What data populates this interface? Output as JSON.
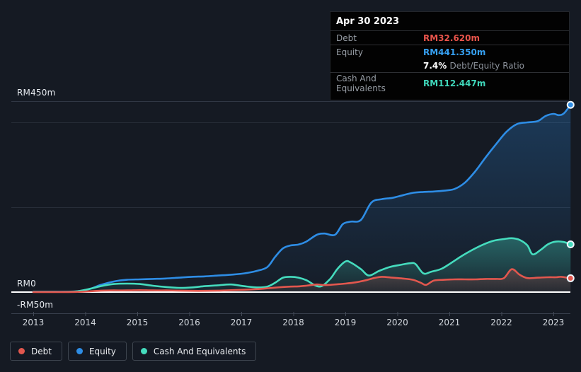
{
  "tooltip": {
    "date": "Apr 30 2023",
    "debt_label": "Debt",
    "debt_value": "RM32.620m",
    "equity_label": "Equity",
    "equity_value": "RM441.350m",
    "ratio_value": "7.4%",
    "ratio_label": "Debt/Equity Ratio",
    "cash_label": "Cash And Equivalents",
    "cash_value": "RM112.447m"
  },
  "legend": {
    "items": [
      {
        "label": "Debt",
        "color": "#e2574e"
      },
      {
        "label": "Equity",
        "color": "#2e8de5"
      },
      {
        "label": "Cash And Equivalents",
        "color": "#45dcbe"
      }
    ]
  },
  "axis": {
    "y_top_label": "RM450m",
    "y_zero_label": "RM0",
    "y_neg_label": "-RM50m",
    "x_ticks": [
      "2013",
      "2014",
      "2015",
      "2016",
      "2017",
      "2018",
      "2019",
      "2020",
      "2021",
      "2022",
      "2023"
    ]
  },
  "colors": {
    "background": "#151a23",
    "gridline": "#272d38",
    "gridline_top": "#303744",
    "zero_line": "#ffffff",
    "axis_line": "#39404d",
    "tick": "#434a57",
    "debt": "#e2574e",
    "equity": "#2e8de5",
    "cash": "#45dcbe",
    "marker_ring": "#eef5fb"
  },
  "chart_data": {
    "type": "area",
    "title": "Debt to Equity History",
    "x_unit": "year",
    "x_range": [
      2012.58,
      2023.42
    ],
    "ylim": [
      -50,
      470
    ],
    "grid_values": [
      450,
      400,
      200
    ],
    "zero_value": 0,
    "neg_axis_value": -50,
    "currency_prefix": "RM",
    "unit_suffix": "m",
    "legend_position": "bottom-left",
    "series": [
      {
        "name": "Equity",
        "color_key": "equity",
        "end_value": 441.35,
        "points": [
          [
            2013.0,
            1
          ],
          [
            2013.3,
            1
          ],
          [
            2013.6,
            1
          ],
          [
            2013.85,
            2
          ],
          [
            2014.1,
            8
          ],
          [
            2014.3,
            17
          ],
          [
            2014.55,
            25
          ],
          [
            2014.8,
            29
          ],
          [
            2015.05,
            30
          ],
          [
            2015.3,
            31
          ],
          [
            2015.55,
            32
          ],
          [
            2015.8,
            34
          ],
          [
            2016.05,
            36
          ],
          [
            2016.3,
            37
          ],
          [
            2016.55,
            39
          ],
          [
            2016.8,
            41
          ],
          [
            2017.05,
            44
          ],
          [
            2017.3,
            50
          ],
          [
            2017.5,
            59
          ],
          [
            2017.65,
            83
          ],
          [
            2017.8,
            103
          ],
          [
            2017.95,
            110
          ],
          [
            2018.1,
            112
          ],
          [
            2018.25,
            119
          ],
          [
            2018.45,
            135
          ],
          [
            2018.6,
            138
          ],
          [
            2018.8,
            135
          ],
          [
            2018.95,
            160
          ],
          [
            2019.1,
            166
          ],
          [
            2019.3,
            170
          ],
          [
            2019.5,
            211
          ],
          [
            2019.7,
            219
          ],
          [
            2019.9,
            222
          ],
          [
            2020.1,
            228
          ],
          [
            2020.3,
            234
          ],
          [
            2020.5,
            236
          ],
          [
            2020.7,
            237
          ],
          [
            2020.9,
            239
          ],
          [
            2021.1,
            243
          ],
          [
            2021.3,
            258
          ],
          [
            2021.5,
            285
          ],
          [
            2021.7,
            318
          ],
          [
            2021.9,
            349
          ],
          [
            2022.1,
            378
          ],
          [
            2022.3,
            396
          ],
          [
            2022.5,
            400
          ],
          [
            2022.7,
            403
          ],
          [
            2022.85,
            415
          ],
          [
            2023.0,
            420
          ],
          [
            2023.1,
            417
          ],
          [
            2023.2,
            421
          ],
          [
            2023.33,
            441.35
          ]
        ]
      },
      {
        "name": "Cash And Equivalents",
        "color_key": "cash",
        "end_value": 112.447,
        "points": [
          [
            2013.0,
            0.5
          ],
          [
            2013.3,
            0.5
          ],
          [
            2013.6,
            0.5
          ],
          [
            2013.85,
            2
          ],
          [
            2014.1,
            8
          ],
          [
            2014.3,
            14
          ],
          [
            2014.55,
            19
          ],
          [
            2014.8,
            20
          ],
          [
            2015.05,
            19
          ],
          [
            2015.3,
            15
          ],
          [
            2015.55,
            12
          ],
          [
            2015.8,
            10
          ],
          [
            2016.05,
            11
          ],
          [
            2016.3,
            14
          ],
          [
            2016.55,
            16
          ],
          [
            2016.8,
            18
          ],
          [
            2017.05,
            14
          ],
          [
            2017.3,
            11
          ],
          [
            2017.5,
            13
          ],
          [
            2017.65,
            22
          ],
          [
            2017.8,
            34
          ],
          [
            2017.95,
            36
          ],
          [
            2018.1,
            34
          ],
          [
            2018.25,
            28
          ],
          [
            2018.5,
            13
          ],
          [
            2018.7,
            30
          ],
          [
            2018.85,
            55
          ],
          [
            2019.0,
            72
          ],
          [
            2019.1,
            70
          ],
          [
            2019.3,
            54
          ],
          [
            2019.45,
            39
          ],
          [
            2019.65,
            50
          ],
          [
            2019.85,
            59
          ],
          [
            2020.05,
            64
          ],
          [
            2020.25,
            68
          ],
          [
            2020.35,
            66
          ],
          [
            2020.5,
            44
          ],
          [
            2020.65,
            48
          ],
          [
            2020.85,
            55
          ],
          [
            2021.05,
            70
          ],
          [
            2021.25,
            86
          ],
          [
            2021.45,
            100
          ],
          [
            2021.65,
            112
          ],
          [
            2021.85,
            121
          ],
          [
            2022.05,
            125
          ],
          [
            2022.2,
            127
          ],
          [
            2022.35,
            123
          ],
          [
            2022.5,
            110
          ],
          [
            2022.6,
            89
          ],
          [
            2022.75,
            99
          ],
          [
            2022.9,
            113
          ],
          [
            2023.05,
            119
          ],
          [
            2023.2,
            118
          ],
          [
            2023.33,
            112.447
          ]
        ]
      },
      {
        "name": "Debt",
        "color_key": "debt",
        "end_value": 32.62,
        "points": [
          [
            2013.0,
            0.2
          ],
          [
            2013.3,
            0.2
          ],
          [
            2013.6,
            0.2
          ],
          [
            2013.85,
            0.5
          ],
          [
            2014.1,
            2
          ],
          [
            2014.3,
            3.5
          ],
          [
            2014.55,
            4
          ],
          [
            2014.8,
            4
          ],
          [
            2015.05,
            4.5
          ],
          [
            2015.3,
            4
          ],
          [
            2015.55,
            4
          ],
          [
            2015.8,
            3.5
          ],
          [
            2016.05,
            3
          ],
          [
            2016.3,
            3
          ],
          [
            2016.55,
            3.5
          ],
          [
            2016.8,
            4.5
          ],
          [
            2017.05,
            5.5
          ],
          [
            2017.3,
            7
          ],
          [
            2017.5,
            9
          ],
          [
            2017.65,
            10.5
          ],
          [
            2017.8,
            12
          ],
          [
            2017.95,
            13
          ],
          [
            2018.1,
            13.5
          ],
          [
            2018.25,
            15
          ],
          [
            2018.45,
            18
          ],
          [
            2018.6,
            16.5
          ],
          [
            2018.8,
            18
          ],
          [
            2019.0,
            20
          ],
          [
            2019.2,
            23
          ],
          [
            2019.4,
            28
          ],
          [
            2019.55,
            33
          ],
          [
            2019.7,
            36
          ],
          [
            2019.9,
            34
          ],
          [
            2020.1,
            32
          ],
          [
            2020.3,
            29
          ],
          [
            2020.45,
            22
          ],
          [
            2020.55,
            17
          ],
          [
            2020.7,
            27
          ],
          [
            2020.9,
            29
          ],
          [
            2021.1,
            30
          ],
          [
            2021.3,
            30
          ],
          [
            2021.5,
            30
          ],
          [
            2021.7,
            31
          ],
          [
            2021.9,
            31
          ],
          [
            2022.05,
            33
          ],
          [
            2022.2,
            54
          ],
          [
            2022.35,
            41
          ],
          [
            2022.5,
            33
          ],
          [
            2022.7,
            34
          ],
          [
            2022.9,
            35
          ],
          [
            2023.05,
            35
          ],
          [
            2023.15,
            36
          ],
          [
            2023.33,
            32.62
          ]
        ]
      }
    ]
  }
}
